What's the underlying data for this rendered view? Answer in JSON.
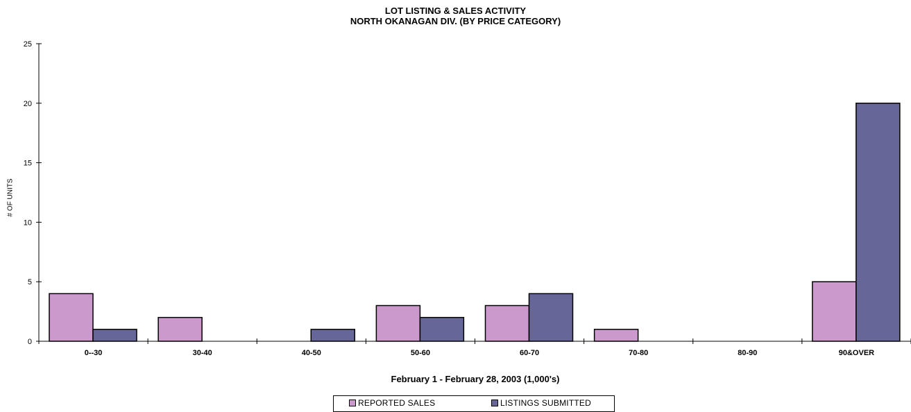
{
  "chart_data": {
    "type": "bar",
    "title": "LOT LISTING & SALES ACTIVITY",
    "subtitle": "NORTH OKANAGAN DIV. (BY PRICE CATEGORY)",
    "xlabel": "February 1 - February 28, 2003 (1,000's)",
    "ylabel": "# OF UNITS",
    "ylim": [
      0,
      25
    ],
    "yticks": [
      0,
      5,
      10,
      15,
      20,
      25
    ],
    "grid": false,
    "legend_position": "bottom",
    "categories": [
      "0--30",
      "30-40",
      "40-50",
      "50-60",
      "60-70",
      "70-80",
      "80-90",
      "90&OVER"
    ],
    "series": [
      {
        "name": "REPORTED SALES",
        "color": "#CC99CC",
        "values": [
          4,
          2,
          0,
          3,
          3,
          1,
          0,
          5
        ]
      },
      {
        "name": "LISTINGS SUBMITTED",
        "color": "#666699",
        "values": [
          1,
          0,
          1,
          2,
          4,
          0,
          0,
          20
        ]
      }
    ]
  }
}
